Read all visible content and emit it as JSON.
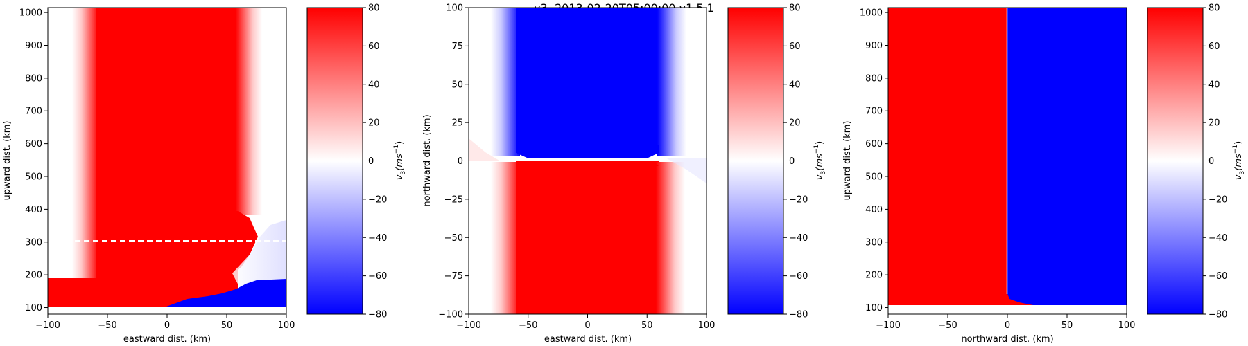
{
  "figure_title": "v3, 2013-02-20T05:00:00  v1.5.1",
  "colors": {
    "positive": "#ff0000",
    "negative": "#0000ff",
    "zero": "#ffffff"
  },
  "chart_data": [
    {
      "type": "heatmap",
      "title": "",
      "xlabel": "eastward dist. (km)",
      "ylabel": "upward dist. (km)",
      "xlim": [
        -100,
        100
      ],
      "ylim": [
        80,
        1015
      ],
      "xticks": [
        -100,
        -50,
        0,
        50,
        100
      ],
      "yticks": [
        100,
        200,
        300,
        400,
        500,
        600,
        700,
        800,
        900,
        1000
      ],
      "xtick_labels": [
        "−100",
        "−50",
        "0",
        "50",
        "100"
      ],
      "ytick_labels": [
        "100",
        "200",
        "300",
        "400",
        "500",
        "600",
        "700",
        "800",
        "900",
        "1000"
      ],
      "colorbar": {
        "label": "v_3 (ms^-1)",
        "label_main": "v",
        "label_sub": "3",
        "label_unit": "(ms",
        "label_exp": "−1",
        "label_close": ")",
        "range": [
          -80,
          80
        ],
        "ticks": [
          80,
          60,
          40,
          20,
          0,
          -20,
          -40,
          -60,
          -80
        ],
        "tick_labels": [
          "80",
          "60",
          "40",
          "20",
          "0",
          "−20",
          "−40",
          "−60",
          "−80"
        ]
      },
      "field": {
        "red_core_x": [
          -60,
          58
        ],
        "edge_fade_km": 22,
        "red_band_below_altitude": 180,
        "blue_region_x": [
          5,
          100
        ],
        "blue_region_altitude": [
          95,
          180
        ],
        "field_floor_altitude": 95
      },
      "reference_line": {
        "altitude": 300,
        "style": "dashed",
        "color": "#ffffff"
      }
    },
    {
      "type": "heatmap",
      "title": "",
      "xlabel": "eastward dist. (km)",
      "ylabel": "northward dist. (km)",
      "xlim": [
        -100,
        100
      ],
      "ylim": [
        -100,
        100
      ],
      "xticks": [
        -100,
        -50,
        0,
        50,
        100
      ],
      "yticks": [
        -100,
        -75,
        -50,
        -25,
        0,
        25,
        50,
        75,
        100
      ],
      "xtick_labels": [
        "−100",
        "−50",
        "0",
        "50",
        "100"
      ],
      "ytick_labels": [
        "−100",
        "−75",
        "−50",
        "−25",
        "0",
        "25",
        "50",
        "75",
        "100"
      ],
      "colorbar": {
        "label": "v_3 (ms^-1)",
        "label_main": "v",
        "label_sub": "3",
        "label_unit": "(ms",
        "label_exp": "−1",
        "label_close": ")",
        "range": [
          -80,
          80
        ],
        "ticks": [
          80,
          60,
          40,
          20,
          0,
          -20,
          -40,
          -60,
          -80
        ],
        "tick_labels": [
          "80",
          "60",
          "40",
          "20",
          "0",
          "−20",
          "−40",
          "−60",
          "−80"
        ]
      },
      "field": {
        "core_x": [
          -60,
          60
        ],
        "edge_fade_km": 22,
        "upper_half_sign": "negative",
        "lower_half_sign": "positive"
      }
    },
    {
      "type": "heatmap",
      "title": "",
      "xlabel": "northward dist. (km)",
      "ylabel": "upward dist. (km)",
      "xlim": [
        -100,
        100
      ],
      "ylim": [
        80,
        1015
      ],
      "xticks": [
        -100,
        -50,
        0,
        50,
        100
      ],
      "yticks": [
        100,
        200,
        300,
        400,
        500,
        600,
        700,
        800,
        900,
        1000
      ],
      "xtick_labels": [
        "−100",
        "−50",
        "0",
        "50",
        "100"
      ],
      "ytick_labels": [
        "100",
        "200",
        "300",
        "400",
        "500",
        "600",
        "700",
        "800",
        "900",
        "1000"
      ],
      "colorbar": {
        "label": "v_3 (ms^-1)",
        "label_main": "v",
        "label_sub": "3",
        "label_unit": "(ms",
        "label_exp": "−1",
        "label_close": ")",
        "range": [
          -80,
          80
        ],
        "ticks": [
          80,
          60,
          40,
          20,
          0,
          -20,
          -40,
          -60,
          -80
        ],
        "tick_labels": [
          "80",
          "60",
          "40",
          "20",
          "0",
          "−20",
          "−40",
          "−60",
          "−80"
        ]
      },
      "field": {
        "split_x": 0,
        "left_sign": "positive",
        "right_sign": "negative",
        "field_floor_altitude": 110
      }
    }
  ]
}
